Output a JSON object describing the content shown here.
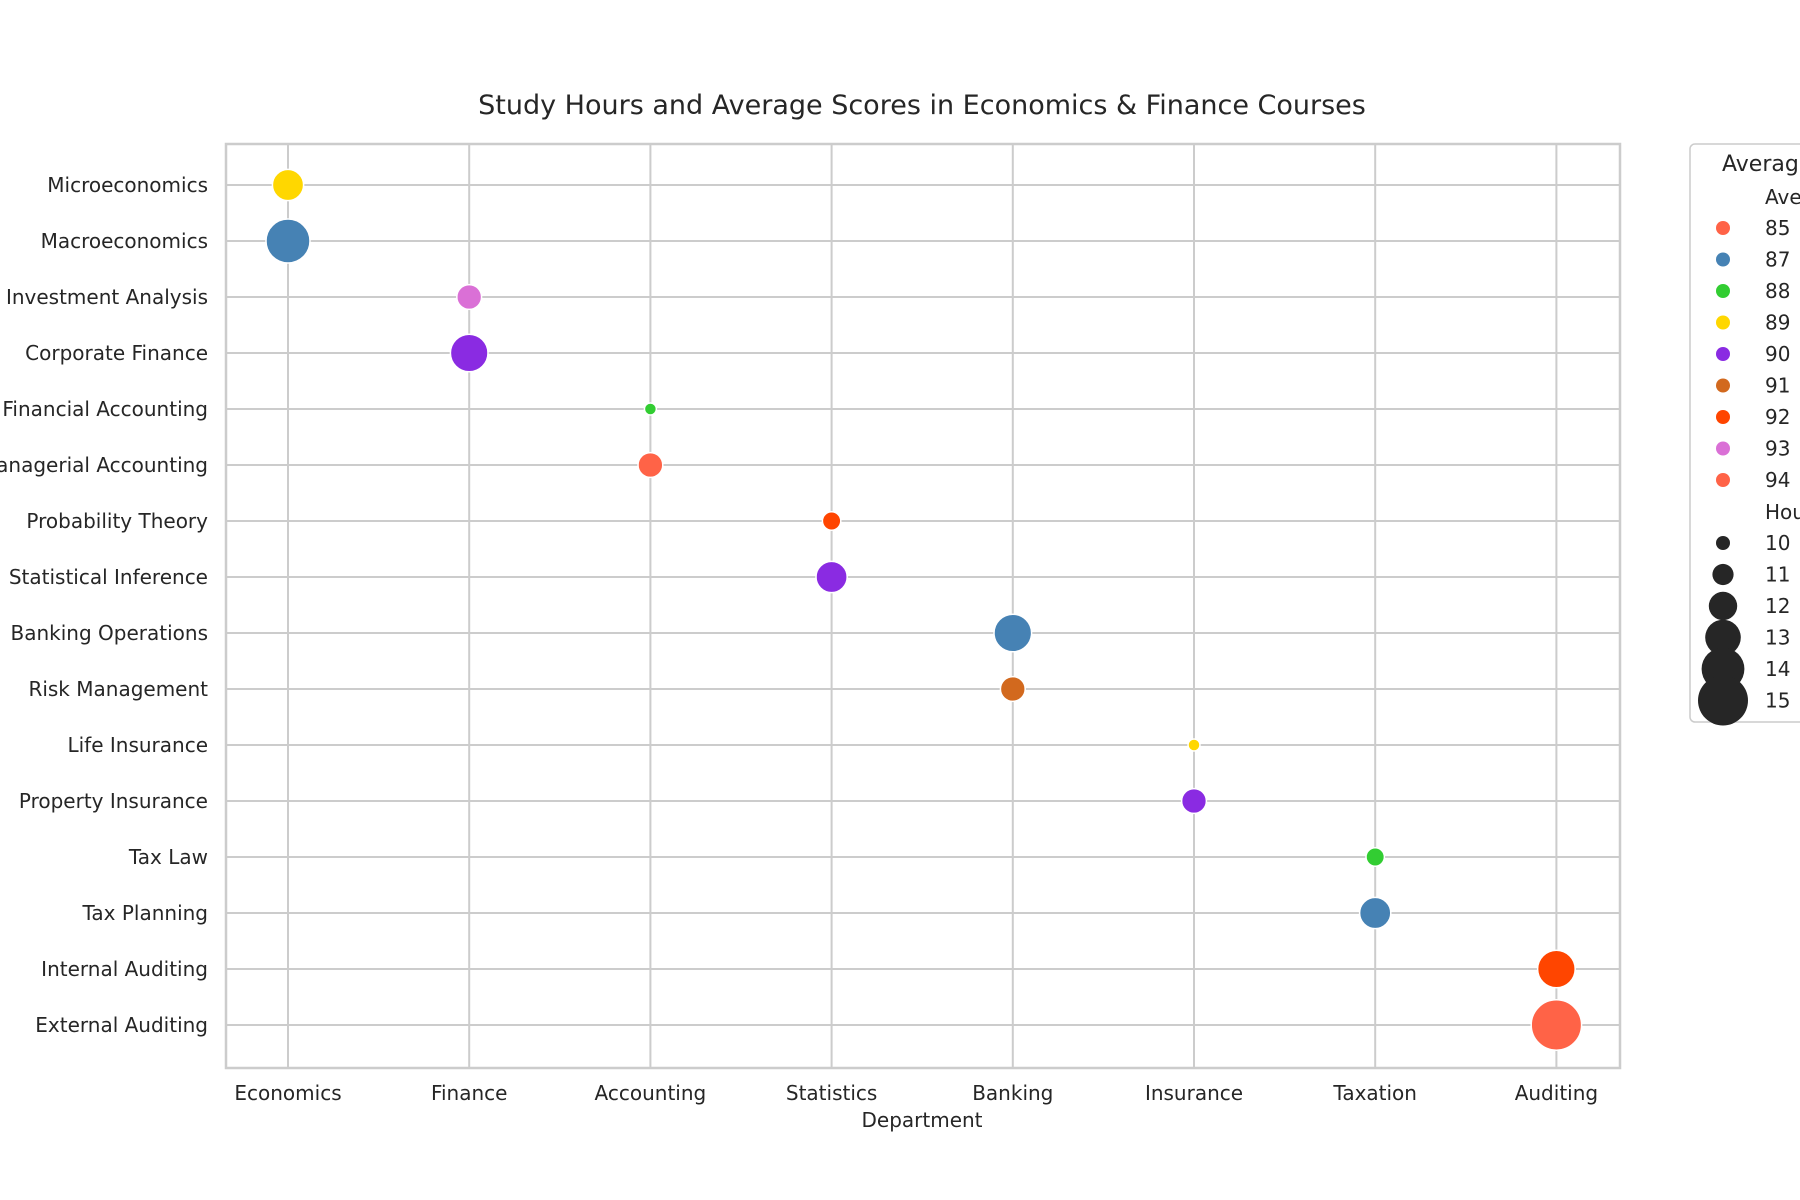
{
  "chart_data": {
    "type": "scatter",
    "title": "Study Hours and Average Scores in Economics & Finance Courses",
    "xlabel": "Department",
    "ylabel": "",
    "x_categories": [
      "Economics",
      "Finance",
      "Accounting",
      "Statistics",
      "Banking",
      "Insurance",
      "Taxation",
      "Auditing"
    ],
    "y_categories": [
      "Microeconomics",
      "Macroeconomics",
      "Investment Analysis",
      "Corporate Finance",
      "Financial Accounting",
      "Managerial Accounting",
      "Probability Theory",
      "Statistical Inference",
      "Banking Operations",
      "Risk Management",
      "Life Insurance",
      "Property Insurance",
      "Tax Law",
      "Tax Planning",
      "Internal Auditing",
      "External Auditing"
    ],
    "grid": true,
    "points": [
      {
        "department": "Economics",
        "course": "Microeconomics",
        "average_score": 89,
        "hours": 12
      },
      {
        "department": "Economics",
        "course": "Macroeconomics",
        "average_score": 87,
        "hours": 14
      },
      {
        "department": "Finance",
        "course": "Investment Analysis",
        "average_score": 93,
        "hours": 11
      },
      {
        "department": "Finance",
        "course": "Corporate Finance",
        "average_score": 90,
        "hours": 13
      },
      {
        "department": "Accounting",
        "course": "Financial Accounting",
        "average_score": 88,
        "hours": 9
      },
      {
        "department": "Accounting",
        "course": "Managerial Accounting",
        "average_score": 94,
        "hours": 11
      },
      {
        "department": "Statistics",
        "course": "Probability Theory",
        "average_score": 92,
        "hours": 10
      },
      {
        "department": "Statistics",
        "course": "Statistical Inference",
        "average_score": 90,
        "hours": 12
      },
      {
        "department": "Banking",
        "course": "Banking Operations",
        "average_score": 87,
        "hours": 13
      },
      {
        "department": "Banking",
        "course": "Risk Management",
        "average_score": 91,
        "hours": 11
      },
      {
        "department": "Insurance",
        "course": "Life Insurance",
        "average_score": 89,
        "hours": 9
      },
      {
        "department": "Insurance",
        "course": "Property Insurance",
        "average_score": 90,
        "hours": 11
      },
      {
        "department": "Taxation",
        "course": "Tax Law",
        "average_score": 88,
        "hours": 10
      },
      {
        "department": "Taxation",
        "course": "Tax Planning",
        "average_score": 87,
        "hours": 12
      },
      {
        "department": "Auditing",
        "course": "Internal Auditing",
        "average_score": 92,
        "hours": 13
      },
      {
        "department": "Auditing",
        "course": "External Auditing",
        "average_score": 85,
        "hours": 15
      }
    ],
    "score_colors": {
      "85": "#ff6347",
      "87": "#4682b4",
      "88": "#32cd32",
      "89": "#ffd700",
      "90": "#8a2be2",
      "91": "#d2691e",
      "92": "#ff4500",
      "93": "#da70d6",
      "94": "#ff6347"
    },
    "legend": {
      "placement": "outside right",
      "title": "Averag",
      "hue_header": "Ave",
      "hue_entries": [
        "85",
        "87",
        "88",
        "89",
        "90",
        "91",
        "92",
        "93",
        "94"
      ],
      "size_header": "Hou",
      "size_entries": [
        "10",
        "11",
        "12",
        "13",
        "14",
        "15"
      ],
      "size_marker_color": "#262626"
    }
  }
}
